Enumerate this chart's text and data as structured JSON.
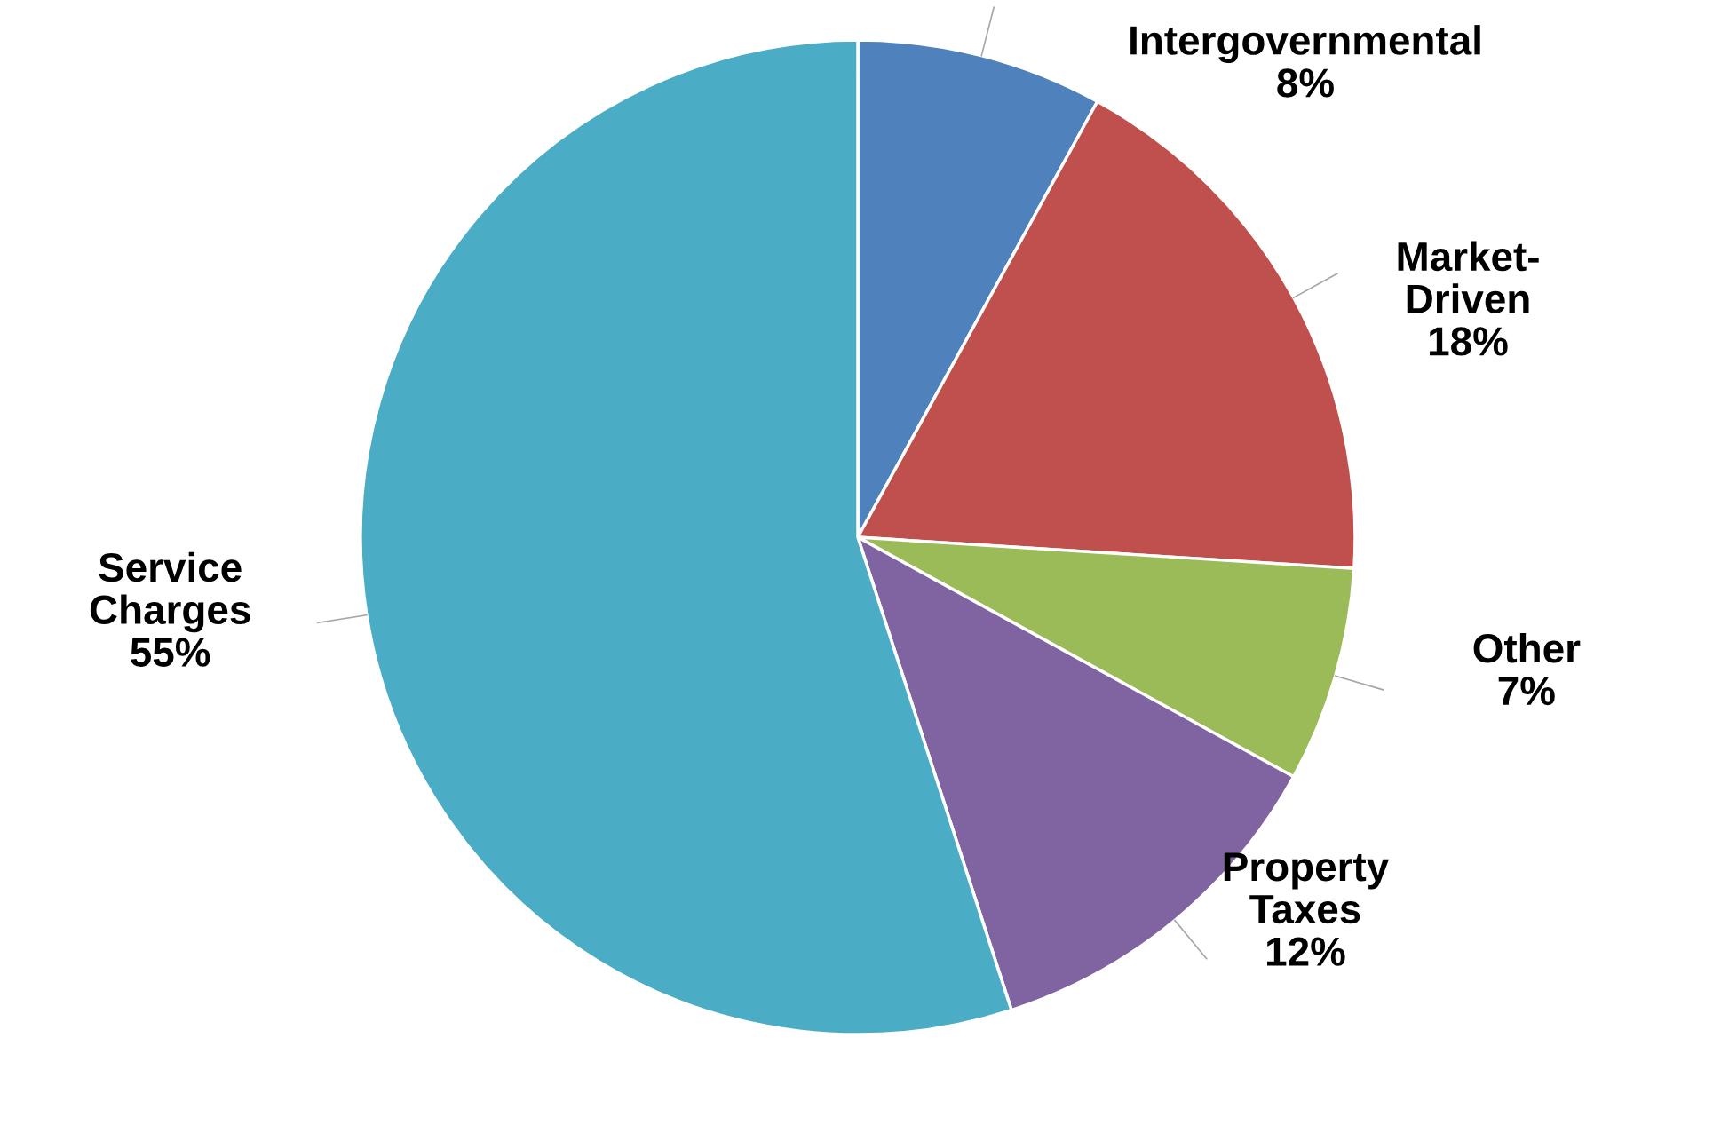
{
  "chart_data": {
    "type": "pie",
    "categories": [
      "Intergovernmental",
      "Market-\nDriven",
      "Other",
      "Property\nTaxes",
      "Service\nCharges"
    ],
    "values": [
      8,
      18,
      7,
      12,
      55
    ],
    "value_labels": [
      "8%",
      "18%",
      "7%",
      "12%",
      "55%"
    ],
    "colors": [
      "#4f81bd",
      "#c0504d",
      "#9bbb59",
      "#8064a2",
      "#4bacc6"
    ],
    "legend": false
  }
}
